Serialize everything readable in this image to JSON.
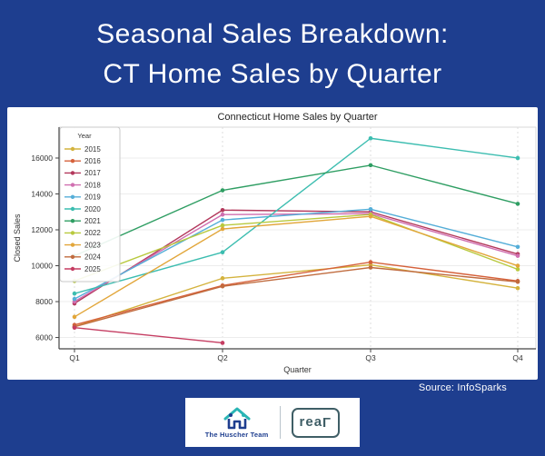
{
  "page": {
    "background_color": "#1e3e8f",
    "panel_color": "#ffffff"
  },
  "header": {
    "line1": "Seasonal Sales Breakdown:",
    "line2": "CT Home Sales by Quarter"
  },
  "chart_data": {
    "type": "line",
    "title": "Connecticut Home Sales by Quarter",
    "xlabel": "Quarter",
    "ylabel": "Closed Sales",
    "categories": [
      "Q1",
      "Q2",
      "Q3",
      "Q4"
    ],
    "ylim": [
      5370,
      17720
    ],
    "yticks": [
      6000,
      8000,
      10000,
      12000,
      14000,
      16000
    ],
    "grid": true,
    "legend_title": "Year",
    "legend_position": "upper-left",
    "series": [
      {
        "name": "2015",
        "color": "#d4b33e",
        "values": [
          6600,
          9300,
          10050,
          8750
        ]
      },
      {
        "name": "2016",
        "color": "#d5613b",
        "values": [
          6700,
          8900,
          10200,
          9150
        ]
      },
      {
        "name": "2017",
        "color": "#b3385c",
        "values": [
          7900,
          13100,
          13000,
          10650
        ]
      },
      {
        "name": "2018",
        "color": "#d06fb0",
        "values": [
          8000,
          12850,
          12900,
          10550
        ]
      },
      {
        "name": "2019",
        "color": "#55aed8",
        "values": [
          8150,
          12550,
          13150,
          11050
        ]
      },
      {
        "name": "2020",
        "color": "#3cbdb0",
        "values": [
          8450,
          10750,
          17100,
          16000
        ]
      },
      {
        "name": "2021",
        "color": "#2f9e63",
        "values": [
          10550,
          14200,
          15600,
          13450
        ]
      },
      {
        "name": "2022",
        "color": "#b8c93e",
        "values": [
          9150,
          12250,
          12850,
          9800
        ]
      },
      {
        "name": "2023",
        "color": "#e2a63a",
        "values": [
          7150,
          12050,
          12750,
          10000
        ]
      },
      {
        "name": "2024",
        "color": "#c06b3e",
        "values": [
          6600,
          8850,
          9900,
          9100
        ]
      },
      {
        "name": "2025",
        "color": "#c53d62",
        "values": [
          6550,
          5700,
          null,
          null
        ]
      }
    ]
  },
  "footer": {
    "source": "Source: InfoSparks",
    "team_name": "The Huscher Team",
    "brokerage_prefix": "rea",
    "brokerage_l": "L"
  }
}
